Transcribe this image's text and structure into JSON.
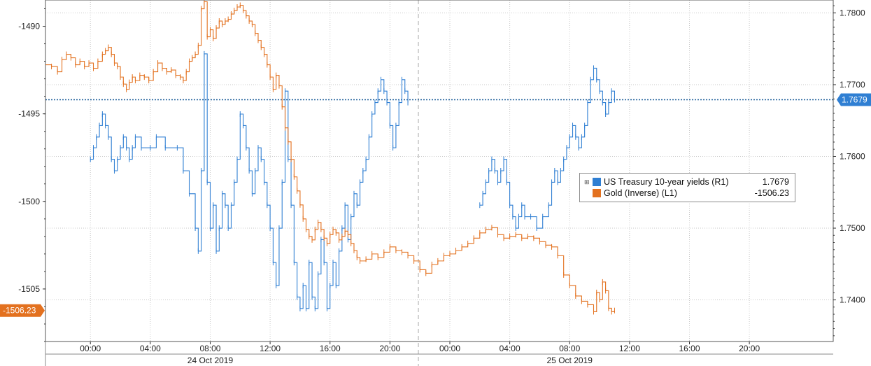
{
  "chart_data": {
    "type": "line",
    "left_axis": {
      "ticks": [
        -1490,
        -1495,
        -1500,
        -1505
      ],
      "tick_labels": [
        "-1490",
        "-1495",
        "-1500",
        "-1505"
      ],
      "ylim": [
        -1508,
        -1488.5
      ]
    },
    "right_axis": {
      "ticks": [
        1.74,
        1.75,
        1.76,
        1.77,
        1.78
      ],
      "tick_labels": [
        "1.7400",
        "1.7500",
        "1.7600",
        "1.7700",
        "1.7800"
      ],
      "ylim": [
        1.7342,
        1.7818
      ]
    },
    "x_axis": {
      "time_labels": [
        "00:00",
        "04:00",
        "08:00",
        "12:00",
        "16:00",
        "20:00",
        "00:00",
        "04:00",
        "08:00",
        "12:00",
        "16:00",
        "20:00"
      ],
      "time_hours": [
        0,
        4,
        8,
        12,
        16,
        20,
        24,
        28,
        32,
        36,
        40,
        44
      ],
      "date_labels": [
        {
          "label": "24 Oct 2019",
          "hour": 8
        },
        {
          "label": "25 Oct 2019",
          "hour": 32
        }
      ],
      "day_separator_hour": 21.9,
      "range_hours": [
        -3.0,
        49.6
      ]
    },
    "series": [
      {
        "name": "US Treasury 10-year yields (R1)",
        "axis": "right",
        "color": "#2f7fd3",
        "last_value": "1.7679",
        "points": [
          [
            0.0,
            1.7596
          ],
          [
            0.2,
            1.7612
          ],
          [
            0.4,
            1.7627
          ],
          [
            0.6,
            1.7643
          ],
          [
            0.8,
            1.7659
          ],
          [
            1.0,
            1.7643
          ],
          [
            1.2,
            1.7627
          ],
          [
            1.4,
            1.7596
          ],
          [
            1.6,
            1.758
          ],
          [
            1.8,
            1.7596
          ],
          [
            2.0,
            1.7612
          ],
          [
            2.2,
            1.7627
          ],
          [
            2.4,
            1.7612
          ],
          [
            2.6,
            1.7596
          ],
          [
            2.8,
            1.7612
          ],
          [
            3.0,
            1.7627
          ],
          [
            3.4,
            1.7612
          ],
          [
            4.0,
            1.7612
          ],
          [
            4.4,
            1.7627
          ],
          [
            5.0,
            1.7612
          ],
          [
            5.8,
            1.7612
          ],
          [
            6.2,
            1.758
          ],
          [
            6.6,
            1.7548
          ],
          [
            7.0,
            1.75
          ],
          [
            7.2,
            1.7468
          ],
          [
            7.4,
            1.758
          ],
          [
            7.6,
            1.7743
          ],
          [
            7.8,
            1.7564
          ],
          [
            8.0,
            1.75
          ],
          [
            8.2,
            1.7532
          ],
          [
            8.4,
            1.7468
          ],
          [
            8.6,
            1.75
          ],
          [
            8.8,
            1.7548
          ],
          [
            9.0,
            1.7532
          ],
          [
            9.2,
            1.75
          ],
          [
            9.4,
            1.7532
          ],
          [
            9.6,
            1.7564
          ],
          [
            9.8,
            1.7596
          ],
          [
            10.0,
            1.7659
          ],
          [
            10.2,
            1.7643
          ],
          [
            10.4,
            1.7612
          ],
          [
            10.6,
            1.758
          ],
          [
            10.8,
            1.7548
          ],
          [
            11.0,
            1.758
          ],
          [
            11.2,
            1.7612
          ],
          [
            11.4,
            1.7596
          ],
          [
            11.6,
            1.7564
          ],
          [
            11.8,
            1.7532
          ],
          [
            12.0,
            1.75
          ],
          [
            12.2,
            1.7452
          ],
          [
            12.4,
            1.742
          ],
          [
            12.6,
            1.75
          ],
          [
            12.8,
            1.7564
          ],
          [
            13.0,
            1.7691
          ],
          [
            13.2,
            1.7596
          ],
          [
            13.4,
            1.7532
          ],
          [
            13.6,
            1.7452
          ],
          [
            13.8,
            1.7404
          ],
          [
            14.0,
            1.7388
          ],
          [
            14.2,
            1.742
          ],
          [
            14.4,
            1.7388
          ],
          [
            14.6,
            1.7452
          ],
          [
            14.8,
            1.7404
          ],
          [
            15.0,
            1.7388
          ],
          [
            15.2,
            1.7436
          ],
          [
            15.4,
            1.7484
          ],
          [
            15.6,
            1.7452
          ],
          [
            15.8,
            1.7388
          ],
          [
            16.0,
            1.742
          ],
          [
            16.2,
            1.7452
          ],
          [
            16.4,
            1.742
          ],
          [
            16.6,
            1.7468
          ],
          [
            16.8,
            1.75
          ],
          [
            17.0,
            1.7532
          ],
          [
            17.2,
            1.7484
          ],
          [
            17.4,
            1.7516
          ],
          [
            17.6,
            1.7548
          ],
          [
            17.8,
            1.7532
          ],
          [
            18.0,
            1.7564
          ],
          [
            18.2,
            1.758
          ],
          [
            18.4,
            1.7596
          ],
          [
            18.6,
            1.7627
          ],
          [
            18.8,
            1.7659
          ],
          [
            19.0,
            1.7675
          ],
          [
            19.2,
            1.7691
          ],
          [
            19.4,
            1.7707
          ],
          [
            19.6,
            1.7691
          ],
          [
            19.8,
            1.7675
          ],
          [
            20.0,
            1.7643
          ],
          [
            20.2,
            1.7612
          ],
          [
            20.4,
            1.7643
          ],
          [
            20.6,
            1.7675
          ],
          [
            20.8,
            1.7707
          ],
          [
            21.0,
            1.7691
          ],
          [
            21.2,
            1.7675
          ],
          [
            26.0,
            1.7532
          ],
          [
            26.2,
            1.7548
          ],
          [
            26.4,
            1.7564
          ],
          [
            26.6,
            1.758
          ],
          [
            26.8,
            1.7596
          ],
          [
            27.0,
            1.758
          ],
          [
            27.2,
            1.7564
          ],
          [
            27.4,
            1.758
          ],
          [
            27.6,
            1.7596
          ],
          [
            27.8,
            1.7564
          ],
          [
            28.0,
            1.7532
          ],
          [
            28.2,
            1.7516
          ],
          [
            28.4,
            1.75
          ],
          [
            28.6,
            1.7516
          ],
          [
            28.8,
            1.7532
          ],
          [
            29.0,
            1.7516
          ],
          [
            29.4,
            1.7516
          ],
          [
            29.8,
            1.75
          ],
          [
            30.2,
            1.7516
          ],
          [
            30.6,
            1.7532
          ],
          [
            30.8,
            1.7564
          ],
          [
            31.0,
            1.758
          ],
          [
            31.2,
            1.7564
          ],
          [
            31.4,
            1.758
          ],
          [
            31.6,
            1.7596
          ],
          [
            31.8,
            1.7612
          ],
          [
            32.0,
            1.7627
          ],
          [
            32.2,
            1.7643
          ],
          [
            32.4,
            1.7627
          ],
          [
            32.6,
            1.7612
          ],
          [
            32.8,
            1.7627
          ],
          [
            33.0,
            1.7643
          ],
          [
            33.2,
            1.7675
          ],
          [
            33.4,
            1.7707
          ],
          [
            33.6,
            1.7723
          ],
          [
            33.8,
            1.7707
          ],
          [
            34.0,
            1.7691
          ],
          [
            34.2,
            1.7675
          ],
          [
            34.4,
            1.7659
          ],
          [
            34.6,
            1.7675
          ],
          [
            34.8,
            1.7691
          ],
          [
            35.0,
            1.7679
          ]
        ]
      },
      {
        "name": "Gold (Inverse) (L1)",
        "axis": "left",
        "color": "#e3711f",
        "last_value": "-1506.23",
        "points": [
          [
            -3.0,
            -1492.2
          ],
          [
            -2.6,
            -1492.3
          ],
          [
            -2.2,
            -1492.6
          ],
          [
            -1.9,
            -1491.9
          ],
          [
            -1.6,
            -1491.6
          ],
          [
            -1.3,
            -1491.8
          ],
          [
            -1.0,
            -1492.2
          ],
          [
            -0.7,
            -1492.0
          ],
          [
            -0.4,
            -1492.3
          ],
          [
            -0.1,
            -1492.1
          ],
          [
            0.2,
            -1492.4
          ],
          [
            0.5,
            -1492.0
          ],
          [
            0.8,
            -1491.6
          ],
          [
            1.0,
            -1491.4
          ],
          [
            1.2,
            -1491.2
          ],
          [
            1.4,
            -1491.6
          ],
          [
            1.6,
            -1492.1
          ],
          [
            1.8,
            -1492.3
          ],
          [
            2.0,
            -1492.9
          ],
          [
            2.2,
            -1493.3
          ],
          [
            2.4,
            -1493.6
          ],
          [
            2.6,
            -1493.2
          ],
          [
            2.8,
            -1492.9
          ],
          [
            3.0,
            -1493.1
          ],
          [
            3.3,
            -1492.8
          ],
          [
            3.6,
            -1492.9
          ],
          [
            3.9,
            -1493.1
          ],
          [
            4.2,
            -1492.6
          ],
          [
            4.5,
            -1492.1
          ],
          [
            4.8,
            -1492.4
          ],
          [
            5.1,
            -1492.6
          ],
          [
            5.4,
            -1492.5
          ],
          [
            5.7,
            -1492.8
          ],
          [
            6.0,
            -1492.9
          ],
          [
            6.2,
            -1493.1
          ],
          [
            6.4,
            -1492.6
          ],
          [
            6.6,
            -1492.0
          ],
          [
            6.8,
            -1491.8
          ],
          [
            7.0,
            -1491.6
          ],
          [
            7.2,
            -1491.1
          ],
          [
            7.4,
            -1489.0
          ],
          [
            7.6,
            -1488.6
          ],
          [
            7.8,
            -1490.6
          ],
          [
            8.0,
            -1490.2
          ],
          [
            8.2,
            -1490.7
          ],
          [
            8.4,
            -1490.1
          ],
          [
            8.6,
            -1489.7
          ],
          [
            8.8,
            -1489.9
          ],
          [
            9.0,
            -1489.7
          ],
          [
            9.2,
            -1489.6
          ],
          [
            9.4,
            -1489.3
          ],
          [
            9.6,
            -1489.1
          ],
          [
            9.8,
            -1488.9
          ],
          [
            10.0,
            -1488.8
          ],
          [
            10.2,
            -1489.1
          ],
          [
            10.4,
            -1489.4
          ],
          [
            10.6,
            -1489.7
          ],
          [
            10.8,
            -1489.9
          ],
          [
            11.0,
            -1490.4
          ],
          [
            11.2,
            -1490.8
          ],
          [
            11.4,
            -1491.2
          ],
          [
            11.6,
            -1491.6
          ],
          [
            11.8,
            -1492.2
          ],
          [
            12.0,
            -1492.9
          ],
          [
            12.2,
            -1493.6
          ],
          [
            12.4,
            -1492.8
          ],
          [
            12.6,
            -1493.4
          ],
          [
            12.8,
            -1494.6
          ],
          [
            13.0,
            -1495.8
          ],
          [
            13.2,
            -1496.6
          ],
          [
            13.4,
            -1497.6
          ],
          [
            13.6,
            -1498.6
          ],
          [
            13.8,
            -1499.4
          ],
          [
            14.0,
            -1500.2
          ],
          [
            14.2,
            -1501.0
          ],
          [
            14.4,
            -1501.6
          ],
          [
            14.6,
            -1502.0
          ],
          [
            14.8,
            -1502.2
          ],
          [
            15.0,
            -1501.6
          ],
          [
            15.2,
            -1501.2
          ],
          [
            15.4,
            -1501.6
          ],
          [
            15.6,
            -1502.1
          ],
          [
            15.8,
            -1502.4
          ],
          [
            16.0,
            -1501.9
          ],
          [
            16.2,
            -1501.6
          ],
          [
            16.4,
            -1501.8
          ],
          [
            16.6,
            -1502.2
          ],
          [
            16.8,
            -1502.0
          ],
          [
            17.0,
            -1501.7
          ],
          [
            17.2,
            -1501.9
          ],
          [
            17.4,
            -1502.4
          ],
          [
            17.6,
            -1502.8
          ],
          [
            17.8,
            -1503.2
          ],
          [
            18.0,
            -1503.4
          ],
          [
            18.4,
            -1503.3
          ],
          [
            18.8,
            -1503.0
          ],
          [
            19.2,
            -1503.2
          ],
          [
            19.6,
            -1502.9
          ],
          [
            20.0,
            -1502.6
          ],
          [
            20.4,
            -1502.8
          ],
          [
            20.8,
            -1502.9
          ],
          [
            21.2,
            -1503.1
          ],
          [
            21.6,
            -1503.4
          ],
          [
            22.0,
            -1503.9
          ],
          [
            22.4,
            -1504.1
          ],
          [
            22.8,
            -1503.6
          ],
          [
            23.2,
            -1503.4
          ],
          [
            23.6,
            -1503.1
          ],
          [
            24.0,
            -1503.0
          ],
          [
            24.4,
            -1502.8
          ],
          [
            24.8,
            -1502.6
          ],
          [
            25.2,
            -1502.4
          ],
          [
            25.6,
            -1502.1
          ],
          [
            26.0,
            -1501.8
          ],
          [
            26.4,
            -1501.6
          ],
          [
            26.8,
            -1501.5
          ],
          [
            27.2,
            -1501.9
          ],
          [
            27.6,
            -1502.1
          ],
          [
            28.0,
            -1502.0
          ],
          [
            28.4,
            -1501.9
          ],
          [
            28.8,
            -1502.1
          ],
          [
            29.2,
            -1502.0
          ],
          [
            29.6,
            -1502.1
          ],
          [
            30.0,
            -1502.3
          ],
          [
            30.4,
            -1502.5
          ],
          [
            30.8,
            -1502.6
          ],
          [
            31.2,
            -1503.1
          ],
          [
            31.6,
            -1504.2
          ],
          [
            32.0,
            -1504.8
          ],
          [
            32.4,
            -1505.4
          ],
          [
            32.8,
            -1505.7
          ],
          [
            33.2,
            -1505.9
          ],
          [
            33.6,
            -1506.3
          ],
          [
            33.8,
            -1505.2
          ],
          [
            34.0,
            -1505.6
          ],
          [
            34.2,
            -1504.6
          ],
          [
            34.4,
            -1505.1
          ],
          [
            34.6,
            -1506.1
          ],
          [
            34.8,
            -1506.3
          ],
          [
            35.0,
            -1506.23
          ]
        ]
      }
    ],
    "reference_line": {
      "axis": "right",
      "value": 1.7679
    },
    "grid": true
  }
}
